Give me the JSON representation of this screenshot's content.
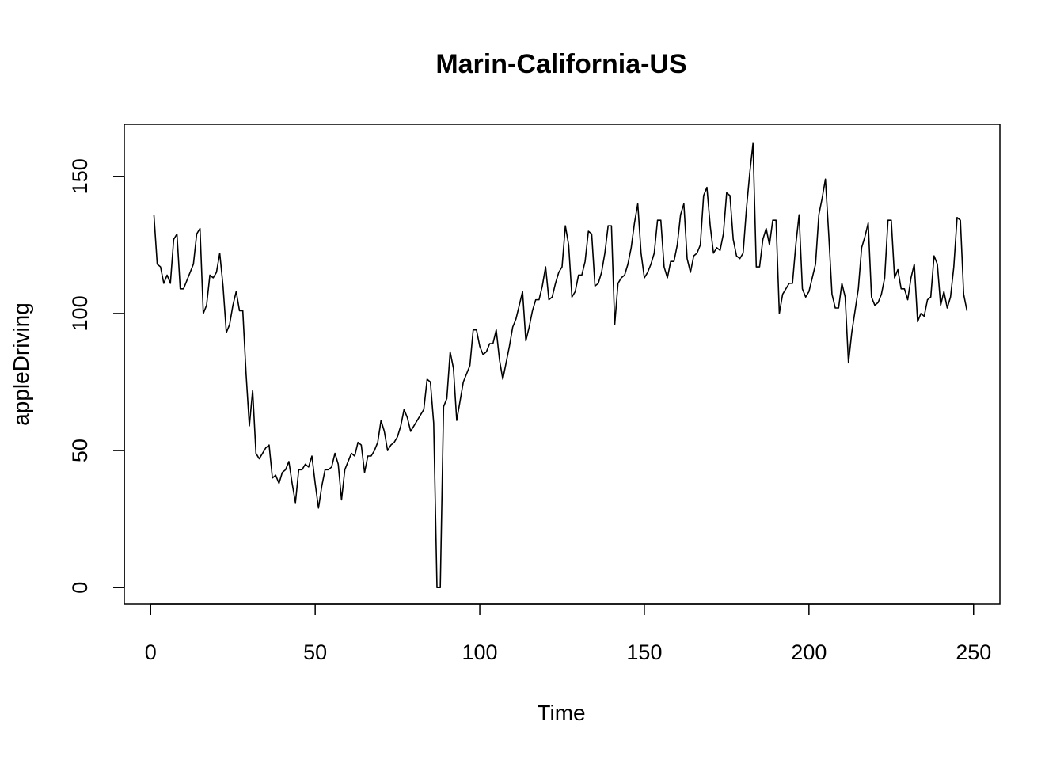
{
  "chart_data": {
    "type": "line",
    "title": "Marin-California-US",
    "xlabel": "Time",
    "ylabel": "appleDriving",
    "xlim": [
      -8,
      258
    ],
    "ylim": [
      -6,
      169
    ],
    "x_ticks": [
      0,
      50,
      100,
      150,
      200,
      250
    ],
    "y_ticks": [
      0,
      50,
      100,
      150
    ],
    "grid": false,
    "legend": "none",
    "series": [
      {
        "color": "#000000",
        "x_start": 1,
        "values": [
          136,
          118,
          117,
          111,
          114,
          111,
          127,
          129,
          109,
          109,
          112,
          115,
          118,
          129,
          131,
          100,
          103,
          114,
          113,
          115,
          122,
          110,
          93,
          96,
          103,
          108,
          101,
          101,
          78,
          59,
          72,
          49,
          47,
          49,
          51,
          52,
          40,
          41,
          38,
          42,
          43,
          46,
          38,
          31,
          43,
          43,
          45,
          44,
          48,
          38,
          29,
          37,
          43,
          43,
          44,
          49,
          45,
          32,
          43,
          46,
          49,
          48,
          53,
          52,
          42,
          48,
          48,
          50,
          53,
          61,
          57,
          50,
          52,
          53,
          55,
          59,
          65,
          62,
          57,
          59,
          61,
          63,
          65,
          76,
          75,
          60,
          0,
          0,
          66,
          69,
          86,
          80,
          61,
          68,
          75,
          78,
          81,
          94,
          94,
          88,
          85,
          86,
          89,
          89,
          94,
          83,
          76,
          82,
          88,
          95,
          98,
          103,
          108,
          90,
          95,
          101,
          105,
          105,
          110,
          117,
          105,
          106,
          111,
          115,
          117,
          132,
          125,
          106,
          108,
          114,
          114,
          119,
          130,
          129,
          110,
          111,
          115,
          122,
          132,
          132,
          96,
          111,
          113,
          114,
          118,
          124,
          133,
          140,
          122,
          113,
          115,
          118,
          122,
          134,
          134,
          117,
          113,
          119,
          119,
          125,
          136,
          140,
          120,
          115,
          121,
          122,
          125,
          143,
          146,
          132,
          122,
          124,
          123,
          129,
          144,
          143,
          127,
          121,
          120,
          122,
          138,
          151,
          162,
          117,
          117,
          127,
          131,
          125,
          134,
          134,
          100,
          107,
          109,
          111,
          111,
          125,
          136,
          109,
          106,
          108,
          113,
          118,
          136,
          142,
          149,
          129,
          107,
          102,
          102,
          111,
          106,
          82,
          93,
          101,
          109,
          124,
          128,
          133,
          106,
          103,
          104,
          107,
          113,
          134,
          134,
          113,
          116,
          109,
          109,
          105,
          113,
          118,
          97,
          100,
          99,
          105,
          106,
          121,
          118,
          103,
          108,
          102,
          106,
          117,
          135,
          134,
          107,
          101
        ]
      }
    ]
  }
}
